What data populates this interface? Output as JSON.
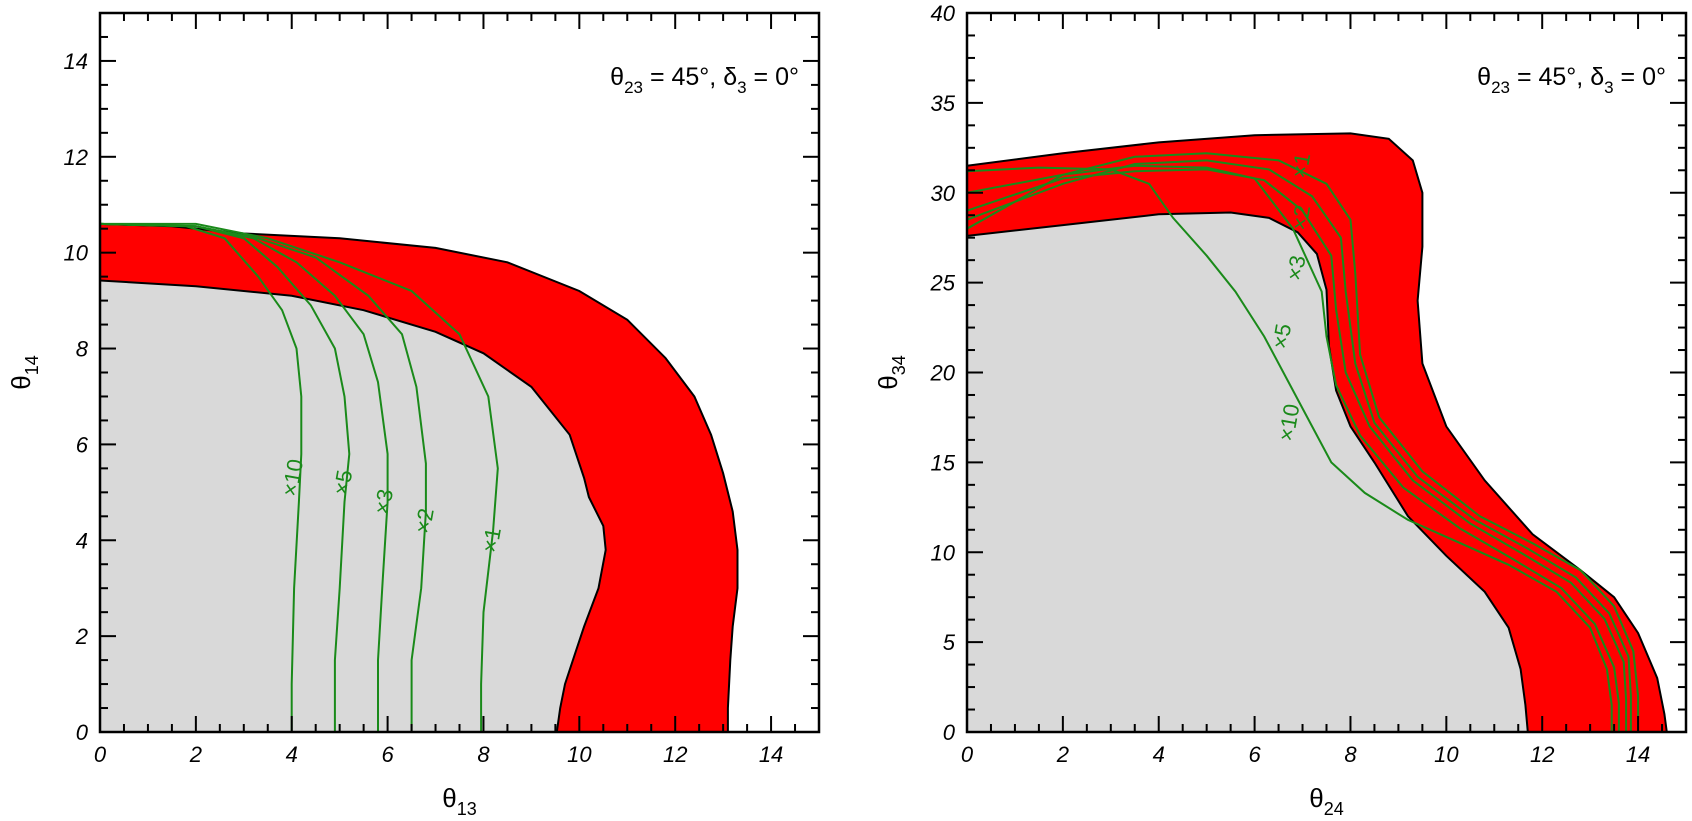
{
  "chart_data": [
    {
      "type": "area",
      "annotation": {
        "theta": "θ",
        "theta_sub": "23",
        "eq1": " = 45°,  ",
        "delta": "δ",
        "delta_sub": "3",
        "eq2": " = 0°"
      },
      "xlabel": {
        "symbol": "θ",
        "sub": "13"
      },
      "ylabel": {
        "symbol": "θ",
        "sub": "14"
      },
      "xlim": [
        0,
        15
      ],
      "ylim": [
        0,
        15
      ],
      "xticks": [
        0,
        2,
        4,
        6,
        8,
        10,
        12,
        14
      ],
      "yticks": [
        0,
        2,
        4,
        6,
        8,
        10,
        12,
        14
      ],
      "grey_region": [
        [
          0,
          0
        ],
        [
          0,
          9.42
        ],
        [
          2,
          9.3
        ],
        [
          4,
          9.1
        ],
        [
          5.5,
          8.8
        ],
        [
          7,
          8.35
        ],
        [
          8,
          7.9
        ],
        [
          9,
          7.2
        ],
        [
          9.8,
          6.2
        ],
        [
          10.1,
          5.3
        ],
        [
          10.2,
          4.9
        ],
        [
          10.5,
          4.3
        ],
        [
          10.55,
          3.8
        ],
        [
          10.4,
          3.0
        ],
        [
          10.1,
          2.2
        ],
        [
          9.9,
          1.6
        ],
        [
          9.7,
          1.0
        ],
        [
          9.6,
          0.5
        ],
        [
          9.53,
          0
        ]
      ],
      "red_outer": [
        [
          0,
          10.6
        ],
        [
          1.5,
          10.55
        ],
        [
          3,
          10.4
        ],
        [
          5,
          10.3
        ],
        [
          7,
          10.1
        ],
        [
          8.5,
          9.8
        ],
        [
          10,
          9.2
        ],
        [
          11,
          8.6
        ],
        [
          11.8,
          7.8
        ],
        [
          12.4,
          7.0
        ],
        [
          12.75,
          6.2
        ],
        [
          13,
          5.4
        ],
        [
          13.2,
          4.6
        ],
        [
          13.3,
          3.8
        ],
        [
          13.3,
          3.0
        ],
        [
          13.2,
          2.2
        ],
        [
          13.15,
          1.5
        ],
        [
          13.1,
          0.5
        ],
        [
          13.1,
          0
        ]
      ],
      "contours": [
        {
          "label": "×1",
          "label_at": [
            8.2,
            4.0
          ],
          "points": [
            [
              0,
              10.6
            ],
            [
              2,
              10.6
            ],
            [
              3.5,
              10.3
            ],
            [
              5,
              9.8
            ],
            [
              6.5,
              9.2
            ],
            [
              7.5,
              8.3
            ],
            [
              8.1,
              7.0
            ],
            [
              8.3,
              5.5
            ],
            [
              8.2,
              4.2
            ],
            [
              8.0,
              2.5
            ],
            [
              7.95,
              1.0
            ],
            [
              7.95,
              0
            ]
          ]
        },
        {
          "label": "×2",
          "label_at": [
            6.8,
            4.4
          ],
          "points": [
            [
              0,
              10.6
            ],
            [
              2,
              10.55
            ],
            [
              3.3,
              10.3
            ],
            [
              4.5,
              9.9
            ],
            [
              5.6,
              9.1
            ],
            [
              6.3,
              8.3
            ],
            [
              6.6,
              7.2
            ],
            [
              6.8,
              5.6
            ],
            [
              6.8,
              4.6
            ],
            [
              6.7,
              3.0
            ],
            [
              6.5,
              1.5
            ],
            [
              6.5,
              0
            ]
          ]
        },
        {
          "label": "×3",
          "label_at": [
            5.95,
            4.8
          ],
          "points": [
            [
              0,
              10.6
            ],
            [
              2,
              10.55
            ],
            [
              3.2,
              10.3
            ],
            [
              4.1,
              9.8
            ],
            [
              4.9,
              9.1
            ],
            [
              5.5,
              8.3
            ],
            [
              5.8,
              7.3
            ],
            [
              6.0,
              5.8
            ],
            [
              6.0,
              4.8
            ],
            [
              5.9,
              3.2
            ],
            [
              5.8,
              1.5
            ],
            [
              5.8,
              0
            ]
          ]
        },
        {
          "label": "×5",
          "label_at": [
            5.1,
            5.2
          ],
          "points": [
            [
              0,
              10.6
            ],
            [
              2,
              10.55
            ],
            [
              3.0,
              10.3
            ],
            [
              3.7,
              9.7
            ],
            [
              4.4,
              8.9
            ],
            [
              4.9,
              8.0
            ],
            [
              5.1,
              7.0
            ],
            [
              5.2,
              5.8
            ],
            [
              5.1,
              4.8
            ],
            [
              5.0,
              3.0
            ],
            [
              4.9,
              1.5
            ],
            [
              4.9,
              0
            ]
          ]
        },
        {
          "label": "×10",
          "label_at": [
            4.05,
            5.3
          ],
          "points": [
            [
              0,
              10.6
            ],
            [
              1.8,
              10.55
            ],
            [
              2.6,
              10.3
            ],
            [
              3.3,
              9.5
            ],
            [
              3.8,
              8.8
            ],
            [
              4.1,
              8.0
            ],
            [
              4.2,
              7.0
            ],
            [
              4.2,
              5.8
            ],
            [
              4.15,
              4.8
            ],
            [
              4.05,
              3.0
            ],
            [
              4.0,
              1.0
            ],
            [
              4.0,
              0
            ]
          ]
        }
      ]
    },
    {
      "type": "area",
      "annotation": {
        "theta": "θ",
        "theta_sub": "23",
        "eq1": " = 45°,  ",
        "delta": "δ",
        "delta_sub": "3",
        "eq2": " = 0°"
      },
      "xlabel": {
        "symbol": "θ",
        "sub": "24"
      },
      "ylabel": {
        "symbol": "θ",
        "sub": "34"
      },
      "xlim": [
        0,
        15
      ],
      "ylim": [
        0,
        40
      ],
      "xticks": [
        0,
        2,
        4,
        6,
        8,
        10,
        12,
        14
      ],
      "yticks": [
        0,
        5,
        10,
        15,
        20,
        25,
        30,
        35,
        40
      ],
      "grey_region": [
        [
          0,
          0
        ],
        [
          0,
          27.6
        ],
        [
          2,
          28.2
        ],
        [
          4,
          28.8
        ],
        [
          5.5,
          28.9
        ],
        [
          6.3,
          28.6
        ],
        [
          6.9,
          27.8
        ],
        [
          7.3,
          26.6
        ],
        [
          7.5,
          24.6
        ],
        [
          7.55,
          21.5
        ],
        [
          7.7,
          19.0
        ],
        [
          8.0,
          17.0
        ],
        [
          8.5,
          15.0
        ],
        [
          9.2,
          12.0
        ],
        [
          10.0,
          9.8
        ],
        [
          10.8,
          7.8
        ],
        [
          11.3,
          5.8
        ],
        [
          11.55,
          3.5
        ],
        [
          11.65,
          1.5
        ],
        [
          11.7,
          0
        ]
      ],
      "red_outer": [
        [
          0,
          31.5
        ],
        [
          2,
          32.2
        ],
        [
          4,
          32.8
        ],
        [
          6,
          33.2
        ],
        [
          8,
          33.3
        ],
        [
          8.8,
          33.0
        ],
        [
          9.3,
          31.8
        ],
        [
          9.5,
          30.0
        ],
        [
          9.5,
          27.0
        ],
        [
          9.4,
          24.0
        ],
        [
          9.5,
          20.5
        ],
        [
          10.0,
          17.0
        ],
        [
          10.8,
          14.0
        ],
        [
          11.8,
          11.0
        ],
        [
          12.8,
          9.0
        ],
        [
          13.5,
          7.5
        ],
        [
          14.0,
          5.5
        ],
        [
          14.4,
          3.0
        ],
        [
          14.55,
          1.0
        ],
        [
          14.6,
          0
        ]
      ],
      "contours": [
        {
          "label": "×1",
          "label_at": [
            7.0,
            31.5
          ],
          "points": [
            [
              0,
              28.0
            ],
            [
              2,
              31.0
            ],
            [
              3.5,
              32.0
            ],
            [
              5,
              32.2
            ],
            [
              6.5,
              31.8
            ],
            [
              7.5,
              30.5
            ],
            [
              8.0,
              28.5
            ],
            [
              8.1,
              25.5
            ],
            [
              8.2,
              21.0
            ],
            [
              8.6,
              17.5
            ],
            [
              9.5,
              14.5
            ],
            [
              10.7,
              12.0
            ],
            [
              11.8,
              10.5
            ],
            [
              12.8,
              9.0
            ],
            [
              13.5,
              7.0
            ],
            [
              13.9,
              4.5
            ],
            [
              14.0,
              2.0
            ],
            [
              14.0,
              0
            ]
          ]
        },
        {
          "label": "×2",
          "label_at": [
            7.0,
            28.6
          ],
          "points": [
            [
              0,
              28.5
            ],
            [
              2,
              30.5
            ],
            [
              3.5,
              31.6
            ],
            [
              5,
              31.8
            ],
            [
              6.3,
              31.3
            ],
            [
              7.2,
              29.8
            ],
            [
              7.8,
              27.5
            ],
            [
              7.9,
              24.5
            ],
            [
              8.1,
              20.5
            ],
            [
              8.5,
              17.2
            ],
            [
              9.4,
              14.2
            ],
            [
              10.6,
              11.8
            ],
            [
              11.7,
              10.2
            ],
            [
              12.7,
              8.6
            ],
            [
              13.4,
              6.6
            ],
            [
              13.8,
              4.2
            ],
            [
              13.85,
              2.0
            ],
            [
              13.85,
              0
            ]
          ]
        },
        {
          "label": "×3",
          "label_at": [
            6.9,
            25.8
          ],
          "points": [
            [
              0,
              29.0
            ],
            [
              2,
              30.8
            ],
            [
              3.5,
              31.2
            ],
            [
              5,
              31.3
            ],
            [
              6.2,
              30.7
            ],
            [
              7.0,
              29.0
            ],
            [
              7.6,
              26.5
            ],
            [
              7.7,
              23.5
            ],
            [
              7.9,
              20.0
            ],
            [
              8.4,
              17.0
            ],
            [
              9.3,
              14.0
            ],
            [
              10.5,
              11.6
            ],
            [
              11.6,
              9.9
            ],
            [
              12.6,
              8.3
            ],
            [
              13.3,
              6.3
            ],
            [
              13.7,
              3.9
            ],
            [
              13.75,
              1.8
            ],
            [
              13.75,
              0
            ]
          ]
        },
        {
          "label": "×5",
          "label_at": [
            6.6,
            22.0
          ],
          "points": [
            [
              0,
              30.0
            ],
            [
              2,
              31.0
            ],
            [
              3.5,
              31.5
            ],
            [
              5,
              31.4
            ],
            [
              6.0,
              30.8
            ],
            [
              6.8,
              28.0
            ],
            [
              7.4,
              24.5
            ],
            [
              7.5,
              22.0
            ],
            [
              7.7,
              19.3
            ],
            [
              8.2,
              16.5
            ],
            [
              9.1,
              13.6
            ],
            [
              10.3,
              11.3
            ],
            [
              11.4,
              9.6
            ],
            [
              12.4,
              8.0
            ],
            [
              13.1,
              6.0
            ],
            [
              13.5,
              3.6
            ],
            [
              13.6,
              1.6
            ],
            [
              13.6,
              0
            ]
          ]
        },
        {
          "label": "×10",
          "label_at": [
            6.75,
            17.2
          ],
          "points": [
            [
              0,
              31.2
            ],
            [
              1.5,
              31.4
            ],
            [
              3,
              31.3
            ],
            [
              3.8,
              30.5
            ],
            [
              4.3,
              28.6
            ],
            [
              5.0,
              26.5
            ],
            [
              5.6,
              24.5
            ],
            [
              6.2,
              22.0
            ],
            [
              6.7,
              19.5
            ],
            [
              7.2,
              17.0
            ],
            [
              7.6,
              15.0
            ],
            [
              8.3,
              13.3
            ],
            [
              9.2,
              11.8
            ],
            [
              10.3,
              10.5
            ],
            [
              11.3,
              9.3
            ],
            [
              12.3,
              7.8
            ],
            [
              13.0,
              5.8
            ],
            [
              13.35,
              3.5
            ],
            [
              13.45,
              1.5
            ],
            [
              13.45,
              0
            ]
          ]
        }
      ]
    }
  ]
}
